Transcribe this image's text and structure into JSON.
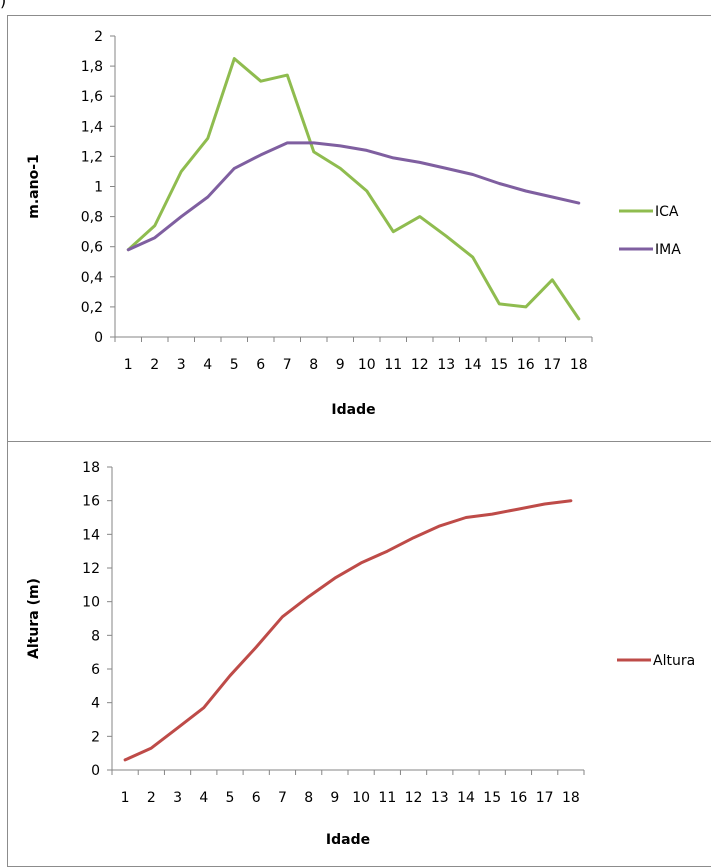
{
  "corner_mark": ")",
  "chart_data": [
    {
      "type": "line",
      "title": "",
      "xlabel": "Idade",
      "ylabel": "m.ano-1",
      "x": [
        1,
        2,
        3,
        4,
        5,
        6,
        7,
        8,
        9,
        10,
        11,
        12,
        13,
        14,
        15,
        16,
        17,
        18
      ],
      "ylim": [
        0,
        2
      ],
      "yticks": [
        0,
        0.2,
        0.4,
        0.6,
        0.8,
        1,
        1.2,
        1.4,
        1.6,
        1.8,
        2
      ],
      "ytick_labels": [
        "0",
        "0,2",
        "0,4",
        "0,6",
        "0,8",
        "1",
        "1,2",
        "1,4",
        "1,6",
        "1,8",
        "2"
      ],
      "legend_position": "right",
      "grid": false,
      "series": [
        {
          "name": "ICA",
          "color": "#8fbc4f",
          "values": [
            0.58,
            0.74,
            1.1,
            1.32,
            1.85,
            1.7,
            1.74,
            1.23,
            1.12,
            0.97,
            0.7,
            0.8,
            0.67,
            0.53,
            0.22,
            0.2,
            0.38,
            0.12
          ]
        },
        {
          "name": "IMA",
          "color": "#7f5fa0",
          "values": [
            0.58,
            0.66,
            0.8,
            0.93,
            1.12,
            1.21,
            1.29,
            1.29,
            1.27,
            1.24,
            1.19,
            1.16,
            1.12,
            1.08,
            1.02,
            0.97,
            0.93,
            0.89
          ]
        }
      ]
    },
    {
      "type": "line",
      "title": "",
      "xlabel": "Idade",
      "ylabel": "Altura (m)",
      "x": [
        1,
        2,
        3,
        4,
        5,
        6,
        7,
        8,
        9,
        10,
        11,
        12,
        13,
        14,
        15,
        16,
        17,
        18
      ],
      "ylim": [
        0,
        18
      ],
      "yticks": [
        0,
        2,
        4,
        6,
        8,
        10,
        12,
        14,
        16,
        18
      ],
      "ytick_labels": [
        "0",
        "2",
        "4",
        "6",
        "8",
        "10",
        "12",
        "14",
        "16",
        "18"
      ],
      "legend_position": "right",
      "grid": false,
      "series": [
        {
          "name": "Altura",
          "color": "#be4b48",
          "values": [
            0.6,
            1.3,
            2.5,
            3.7,
            5.6,
            7.3,
            9.1,
            10.3,
            11.4,
            12.3,
            13.0,
            13.8,
            14.5,
            15.0,
            15.2,
            15.5,
            15.8,
            16.0
          ]
        }
      ]
    }
  ]
}
